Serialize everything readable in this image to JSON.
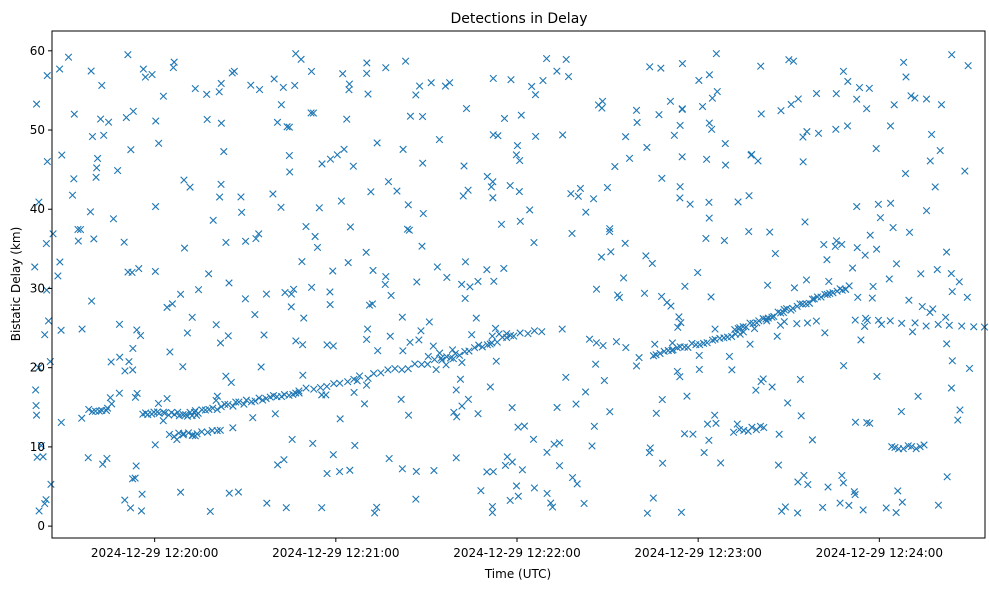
{
  "chart_data": {
    "type": "scatter",
    "title": "Detections in Delay",
    "xlabel": "Time (UTC)",
    "ylabel": "Bistatic Delay (km)",
    "x_start": "2024-12-29 12:19:20",
    "x_end": "2024-12-29 12:24:30",
    "xlim": [
      "2024-12-29 12:19:26",
      "2024-12-29 12:24:35"
    ],
    "ylim": [
      -1.5,
      62.5
    ],
    "x_ticks": [
      {
        "time": "2024-12-29 12:20:00",
        "label": "2024-12-29 12:20:00"
      },
      {
        "time": "2024-12-29 12:21:00",
        "label": "2024-12-29 12:21:00"
      },
      {
        "time": "2024-12-29 12:22:00",
        "label": "2024-12-29 12:22:00"
      },
      {
        "time": "2024-12-29 12:23:00",
        "label": "2024-12-29 12:23:00"
      },
      {
        "time": "2024-12-29 12:24:00",
        "label": "2024-12-29 12:24:00"
      }
    ],
    "y_ticks": [
      0,
      10,
      20,
      30,
      40,
      50,
      60
    ],
    "marker": "x",
    "color": "#1f77b4",
    "grid": false,
    "tracks": [
      {
        "from": "2024-12-29 12:19:38",
        "to": "2024-12-29 12:19:44",
        "y_start": 14.5,
        "y_end": 14.5,
        "n": 6
      },
      {
        "from": "2024-12-29 12:19:56",
        "to": "2024-12-29 12:20:14",
        "y_start": 14.2,
        "y_end": 14.1,
        "n": 20
      },
      {
        "from": "2024-12-29 12:20:12",
        "to": "2024-12-29 12:20:48",
        "y_start": 14.3,
        "y_end": 17.0,
        "n": 30
      },
      {
        "from": "2024-12-29 12:20:48",
        "to": "2024-12-29 12:21:35",
        "y_start": 17.0,
        "y_end": 21.0,
        "n": 22
      },
      {
        "from": "2024-12-29 12:21:35",
        "to": "2024-12-29 12:21:58",
        "y_start": 21.0,
        "y_end": 24.0,
        "n": 16
      },
      {
        "from": "2024-12-29 12:22:45",
        "to": "2024-12-29 12:23:15",
        "y_start": 21.7,
        "y_end": 24.3,
        "n": 24
      },
      {
        "from": "2024-12-29 12:23:12",
        "to": "2024-12-29 12:23:50",
        "y_start": 24.8,
        "y_end": 30.2,
        "n": 38
      },
      {
        "from": "2024-12-29 12:23:52",
        "to": "2024-12-29 12:24:35",
        "y_start": 26.0,
        "y_end": 25.0,
        "n": 12
      },
      {
        "from": "2024-12-29 12:20:05",
        "to": "2024-12-29 12:20:22",
        "y_start": 11.5,
        "y_end": 12.0,
        "n": 12
      },
      {
        "from": "2024-12-29 12:21:52",
        "to": "2024-12-29 12:22:08",
        "y_start": 24.0,
        "y_end": 24.5,
        "n": 8
      },
      {
        "from": "2024-12-29 12:23:12",
        "to": "2024-12-29 12:23:22",
        "y_start": 12.0,
        "y_end": 12.5,
        "n": 8
      },
      {
        "from": "2024-12-29 12:24:05",
        "to": "2024-12-29 12:24:15",
        "y_start": 10.0,
        "y_end": 10.0,
        "n": 8
      }
    ],
    "noise_points": 620,
    "noise_y_range": [
      1.5,
      59.8
    ]
  }
}
